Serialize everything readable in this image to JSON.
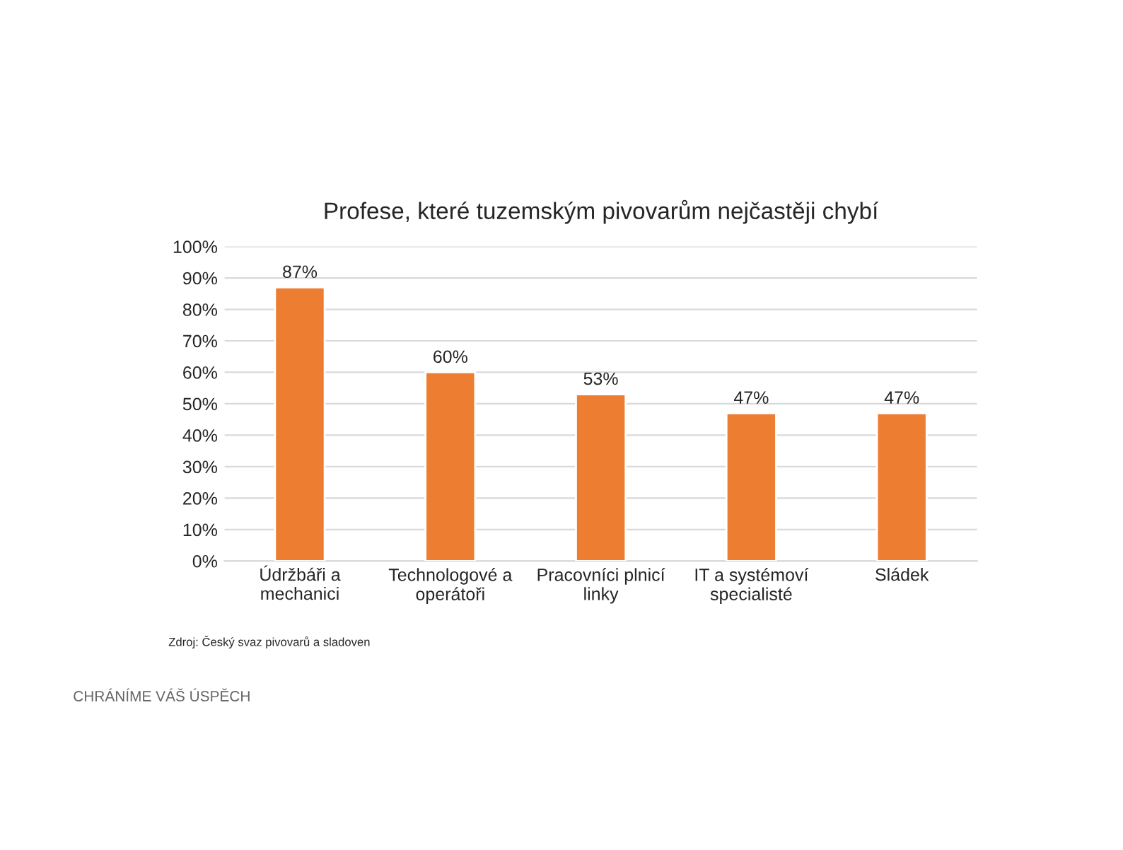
{
  "chart_data": {
    "type": "bar",
    "title": "Profese, které tuzemským pivovarům nejčastěji chybí",
    "categories": [
      "Údržbáři a\nmechanici",
      "Technologové a\noperátoři",
      "Pracovníci plnicí\nlinky",
      "IT a systémoví\nspecialisté",
      "Sládek"
    ],
    "values": [
      87,
      60,
      53,
      47,
      47
    ],
    "value_labels": [
      "87%",
      "60%",
      "53%",
      "47%",
      "47%"
    ],
    "color": "#ed7d31",
    "ylim": [
      0,
      100
    ],
    "yticks": [
      {
        "value": 0,
        "label": "0%"
      },
      {
        "value": 10,
        "label": "10%"
      },
      {
        "value": 20,
        "label": "20%"
      },
      {
        "value": 30,
        "label": "30%"
      },
      {
        "value": 40,
        "label": "40%"
      },
      {
        "value": 50,
        "label": "50%"
      },
      {
        "value": 60,
        "label": "60%"
      },
      {
        "value": 70,
        "label": "70%"
      },
      {
        "value": 80,
        "label": "80%"
      },
      {
        "value": 90,
        "label": "90%"
      },
      {
        "value": 100,
        "label": "100%"
      }
    ],
    "grid": "y",
    "annotations": [
      "Zdroj: Český svaz pivovarů a sladoven",
      "CHRÁNÍME VÁŠ ÚSPĚCH"
    ]
  }
}
